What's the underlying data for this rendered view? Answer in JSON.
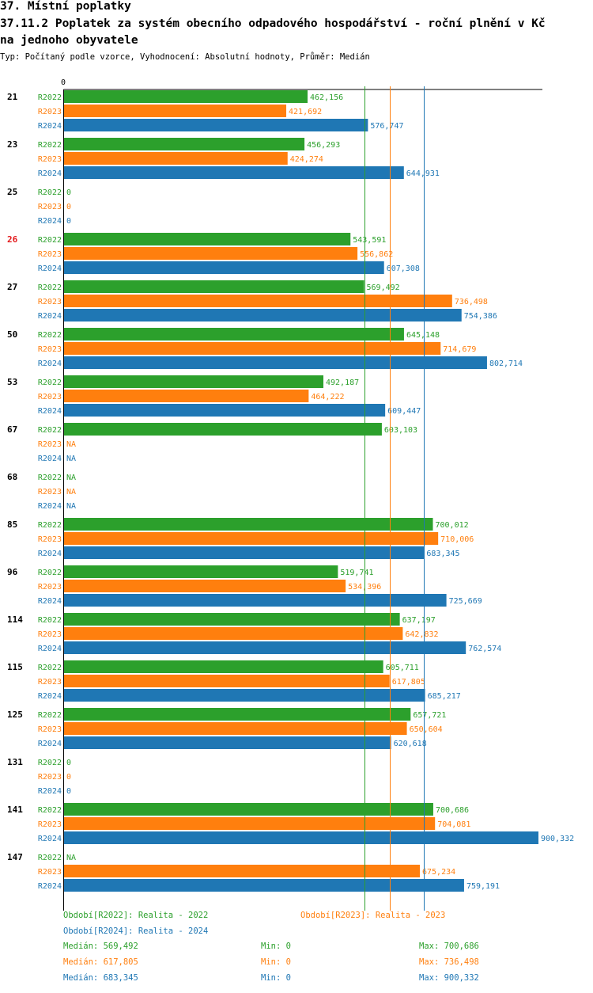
{
  "header": {
    "title": "37. Místní poplatky",
    "subtitle_line1": "37.11.2 Poplatek za systém obecního odpadového hospodářství  - roční plnění v Kč",
    "subtitle_line2": "na jednoho obyvatele",
    "type_line": "Typ: Počítaný podle vzorce, Vyhodnocení: Absolutní hodnoty, Průměr: Medián"
  },
  "colors": {
    "R2022": "#2ca02c",
    "R2023": "#ff7f0e",
    "R2024": "#1f77b4",
    "highlight": "#e31a1c"
  },
  "chart_data": {
    "type": "bar",
    "orientation": "horizontal",
    "axis_zero_label": "0",
    "xlim": [
      0,
      900332
    ],
    "series_names": [
      "R2022",
      "R2023",
      "R2024"
    ],
    "groups": [
      {
        "label": "21",
        "highlight": false,
        "values": [
          462156,
          421692,
          576747
        ],
        "labels": [
          "462,156",
          "421,692",
          "576,747"
        ]
      },
      {
        "label": "23",
        "highlight": false,
        "values": [
          456293,
          424274,
          644931
        ],
        "labels": [
          "456,293",
          "424,274",
          "644,931"
        ]
      },
      {
        "label": "25",
        "highlight": false,
        "values": [
          0,
          0,
          0
        ],
        "labels": [
          "0",
          "0",
          "0"
        ]
      },
      {
        "label": "26",
        "highlight": true,
        "values": [
          543591,
          556862,
          607308
        ],
        "labels": [
          "543,591",
          "556,862",
          "607,308"
        ]
      },
      {
        "label": "27",
        "highlight": false,
        "values": [
          569492,
          736498,
          754386
        ],
        "labels": [
          "569,492",
          "736,498",
          "754,386"
        ]
      },
      {
        "label": "50",
        "highlight": false,
        "values": [
          645148,
          714679,
          802714
        ],
        "labels": [
          "645,148",
          "714,679",
          "802,714"
        ]
      },
      {
        "label": "53",
        "highlight": false,
        "values": [
          492187,
          464222,
          609447
        ],
        "labels": [
          "492,187",
          "464,222",
          "609,447"
        ]
      },
      {
        "label": "67",
        "highlight": false,
        "values": [
          603103,
          null,
          null
        ],
        "labels": [
          "603,103",
          "NA",
          "NA"
        ]
      },
      {
        "label": "68",
        "highlight": false,
        "values": [
          null,
          null,
          null
        ],
        "labels": [
          "NA",
          "NA",
          "NA"
        ]
      },
      {
        "label": "85",
        "highlight": false,
        "values": [
          700012,
          710006,
          683345
        ],
        "labels": [
          "700,012",
          "710,006",
          "683,345"
        ]
      },
      {
        "label": "96",
        "highlight": false,
        "values": [
          519741,
          534396,
          725669
        ],
        "labels": [
          "519,741",
          "534,396",
          "725,669"
        ]
      },
      {
        "label": "114",
        "highlight": false,
        "values": [
          637197,
          642832,
          762574
        ],
        "labels": [
          "637,197",
          "642,832",
          "762,574"
        ]
      },
      {
        "label": "115",
        "highlight": false,
        "values": [
          605711,
          617805,
          685217
        ],
        "labels": [
          "605,711",
          "617,805",
          "685,217"
        ]
      },
      {
        "label": "125",
        "highlight": false,
        "values": [
          657721,
          650604,
          620618
        ],
        "labels": [
          "657,721",
          "650,604",
          "620,618"
        ]
      },
      {
        "label": "131",
        "highlight": false,
        "values": [
          0,
          0,
          0
        ],
        "labels": [
          "0",
          "0",
          "0"
        ]
      },
      {
        "label": "141",
        "highlight": false,
        "values": [
          700686,
          704081,
          900332
        ],
        "labels": [
          "700,686",
          "704,081",
          "900,332"
        ]
      },
      {
        "label": "147",
        "highlight": false,
        "values": [
          null,
          675234,
          759191
        ],
        "labels": [
          "NA",
          "675,234",
          "759,191"
        ]
      }
    ],
    "median_lines": [
      {
        "series": "R2022",
        "value": 569492
      },
      {
        "series": "R2023",
        "value": 617805
      },
      {
        "series": "R2024",
        "value": 683345
      }
    ]
  },
  "legend": {
    "r2022": "Období[R2022]: Realita - 2022",
    "r2023": "Období[R2023]: Realita - 2023",
    "r2024": "Období[R2024]: Realita - 2024",
    "stats": [
      {
        "median": "Medián: 569,492",
        "min": "Min: 0",
        "max": "Max: 700,686"
      },
      {
        "median": "Medián: 617,805",
        "min": "Min: 0",
        "max": "Max: 736,498"
      },
      {
        "median": "Medián: 683,345",
        "min": "Min: 0",
        "max": "Max: 900,332"
      }
    ]
  }
}
